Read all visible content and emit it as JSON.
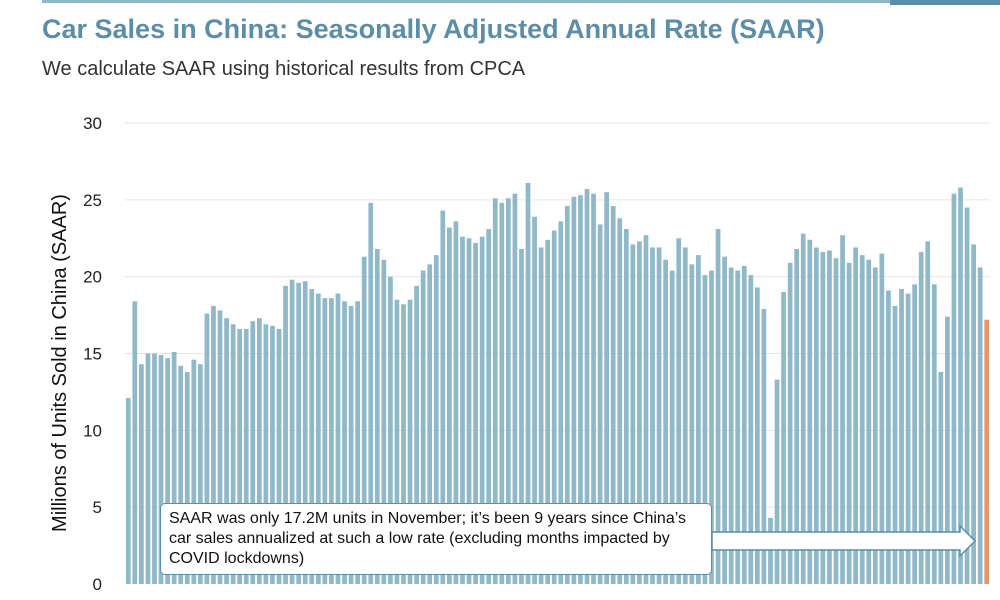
{
  "header": {
    "title": "Car Sales in China: Seasonally Adjusted Annual Rate (SAAR)",
    "subtitle": "We calculate SAAR using historical results from CPCA"
  },
  "annotation": {
    "text": "SAAR was only 17.2M units in November; it’s been 9 years since China’s car sales annualized at such a low rate (excluding months impacted by COVID lockdowns)"
  },
  "colors": {
    "bar": "#8fb8c9",
    "highlight_bar": "#e8956a",
    "title": "#5b8ea8",
    "grid": "#e6e6e6"
  },
  "chart_data": {
    "type": "bar",
    "title": "Car Sales in China: Seasonally Adjusted Annual Rate (SAAR)",
    "ylabel": "Millions of Units Sold in China (SAAR)",
    "xlabel": "",
    "ylim": [
      0,
      30
    ],
    "yticks": [
      0,
      5,
      10,
      15,
      20,
      25,
      30
    ],
    "grid": true,
    "highlight_last_bar": true,
    "x_ticks_note": "month tick labels cut off at bottom edge",
    "values": [
      12.1,
      18.4,
      14.3,
      15.0,
      15.0,
      14.9,
      14.7,
      15.1,
      14.2,
      13.8,
      14.6,
      14.3,
      17.6,
      18.1,
      17.8,
      17.3,
      16.9,
      16.6,
      16.6,
      17.1,
      17.3,
      16.9,
      16.8,
      16.6,
      19.4,
      19.8,
      19.6,
      19.7,
      19.2,
      18.9,
      18.6,
      18.6,
      18.9,
      18.4,
      18.1,
      18.4,
      21.3,
      24.8,
      21.8,
      21.1,
      20.0,
      18.5,
      18.2,
      18.5,
      19.4,
      20.4,
      20.8,
      21.4,
      24.3,
      23.2,
      23.6,
      22.6,
      22.5,
      22.2,
      22.6,
      23.1,
      25.1,
      24.8,
      25.1,
      25.4,
      21.8,
      26.1,
      23.9,
      21.9,
      22.4,
      23.0,
      23.6,
      24.6,
      25.2,
      25.3,
      25.7,
      25.4,
      23.4,
      25.5,
      24.6,
      23.8,
      23.1,
      22.1,
      22.3,
      22.7,
      21.9,
      21.9,
      21.1,
      20.4,
      22.5,
      21.9,
      20.8,
      21.4,
      20.1,
      20.4,
      23.1,
      21.3,
      20.6,
      20.4,
      20.7,
      20.1,
      19.3,
      17.9,
      4.3,
      13.3,
      19.0,
      20.9,
      21.8,
      22.8,
      22.4,
      21.9,
      21.6,
      21.7,
      21.2,
      22.7,
      20.9,
      21.9,
      21.4,
      21.1,
      20.6,
      21.5,
      19.1,
      18.1,
      19.2,
      18.9,
      19.5,
      21.6,
      22.3,
      19.5,
      13.8,
      17.4,
      25.4,
      25.8,
      24.5,
      22.1,
      20.6,
      17.2
    ]
  }
}
